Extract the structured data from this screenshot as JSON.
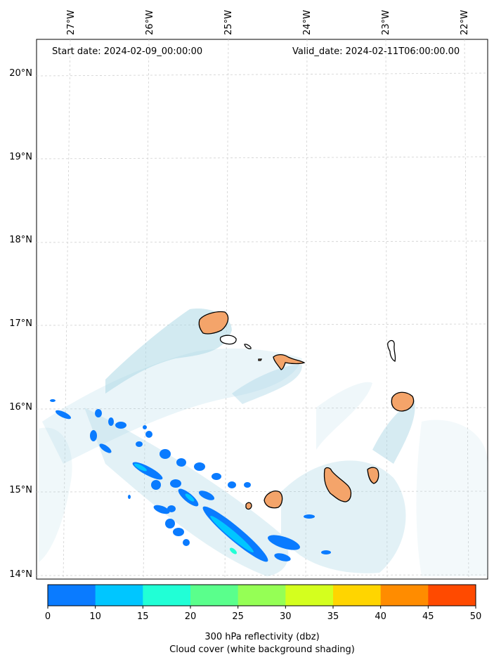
{
  "header": {
    "start_date": "Start date: 2024-02-09_00:00:00",
    "valid_date": "Valid_date: 2024-02-11T06:00:00.00"
  },
  "longitude_labels": [
    "27°W",
    "26°W",
    "25°W",
    "24°W",
    "23°W",
    "22°W"
  ],
  "latitude_labels": [
    "20°N",
    "19°N",
    "18°N",
    "17°N",
    "16°N",
    "15°N",
    "14°N"
  ],
  "colorbar": {
    "ticks": [
      "0",
      "10",
      "15",
      "20",
      "25",
      "30",
      "35",
      "40",
      "45",
      "50"
    ],
    "colors": [
      "#0a7bff",
      "#00c6ff",
      "#21ffd6",
      "#5aff8c",
      "#95ff55",
      "#d4ff1e",
      "#ffd500",
      "#ff8c00",
      "#ff4a00"
    ],
    "label_line1": "300 hPa reflectivity (dbz)",
    "label_line2": "Cloud cover (white background shading)"
  },
  "colors": {
    "land": "#f4a46a",
    "cloud": "#add8e6",
    "grid": "#cccccc"
  }
}
